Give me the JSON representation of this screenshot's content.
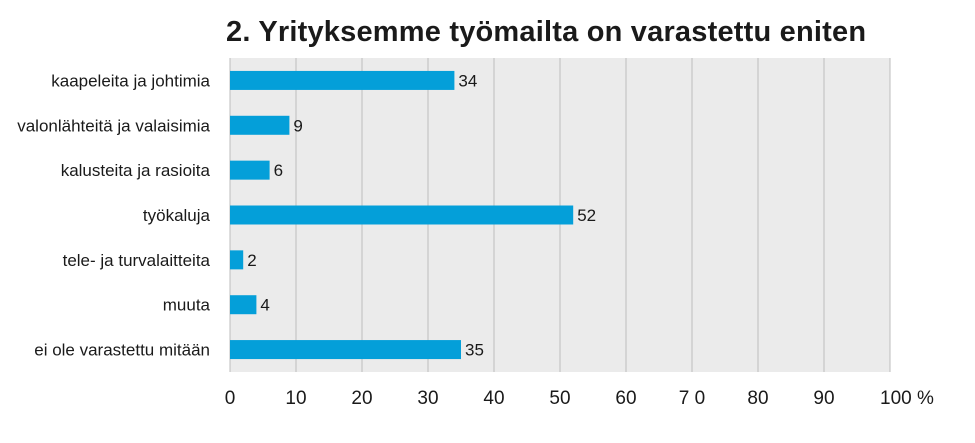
{
  "chart_data": {
    "type": "bar",
    "orientation": "horizontal",
    "title": "2. Yrityksemme työmailta on varastettu eniten",
    "categories": [
      "kaapeleita ja johtimia",
      "valonlähteitä ja valaisimia",
      "kalusteita ja rasioita",
      "työkaluja",
      "tele- ja turvalaitteita",
      "muuta",
      "ei ole varastettu mitään"
    ],
    "values": [
      34,
      9,
      6,
      52,
      2,
      4,
      35
    ],
    "value_labels": [
      "34",
      "9",
      "6",
      "52",
      "2",
      "4",
      "35"
    ],
    "xlim": [
      0,
      100
    ],
    "x_ticks": [
      0,
      10,
      20,
      30,
      40,
      50,
      60,
      70,
      80,
      90,
      100
    ],
    "x_tick_labels": [
      "0",
      "10",
      "20",
      "30",
      "40",
      "50",
      "60",
      "7 0",
      "80",
      "90",
      "100 %"
    ],
    "grid": true,
    "legend": "none",
    "colors": {
      "bar": "#049fd9",
      "plot_background": "#ebebeb",
      "grid": "#bdbdbd",
      "text": "#1a1a1a"
    }
  }
}
